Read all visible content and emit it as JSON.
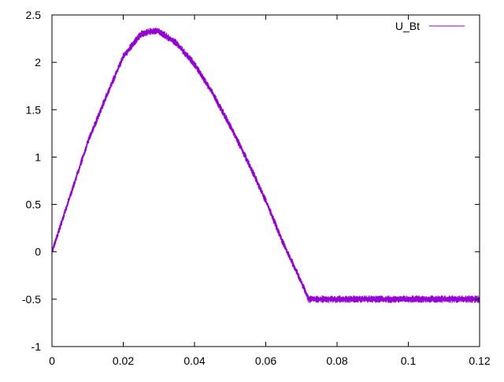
{
  "chart_data": {
    "type": "line",
    "title": "",
    "xlabel": "",
    "ylabel": "",
    "xlim": [
      0,
      0.12
    ],
    "ylim": [
      -1,
      2.5
    ],
    "x_ticks": [
      "0",
      "0.02",
      "0.04",
      "0.06",
      "0.08",
      "0.1",
      "0.12"
    ],
    "x_tick_values": [
      0,
      0.02,
      0.04,
      0.06,
      0.08,
      0.1,
      0.12
    ],
    "y_ticks": [
      "-1",
      "-0.5",
      "0",
      "0.5",
      "1",
      "1.5",
      "2",
      "2.5"
    ],
    "y_tick_values": [
      -1,
      -0.5,
      0,
      0.5,
      1,
      1.5,
      2,
      2.5
    ],
    "grid": false,
    "legend_placement": "top-right",
    "series": [
      {
        "name": "U_Bt",
        "color": "#9400d3",
        "noise_amplitude": 0.04,
        "x": [
          0,
          0.005,
          0.01,
          0.015,
          0.02,
          0.025,
          0.028,
          0.03,
          0.035,
          0.04,
          0.045,
          0.05,
          0.055,
          0.06,
          0.065,
          0.07,
          0.072,
          0.08,
          0.09,
          0.1,
          0.11,
          0.12
        ],
        "y": [
          0,
          0.58,
          1.15,
          1.62,
          2.06,
          2.3,
          2.33,
          2.33,
          2.2,
          1.98,
          1.68,
          1.33,
          0.95,
          0.54,
          0.08,
          -0.32,
          -0.5,
          -0.5,
          -0.5,
          -0.5,
          -0.5,
          -0.5
        ]
      }
    ]
  }
}
